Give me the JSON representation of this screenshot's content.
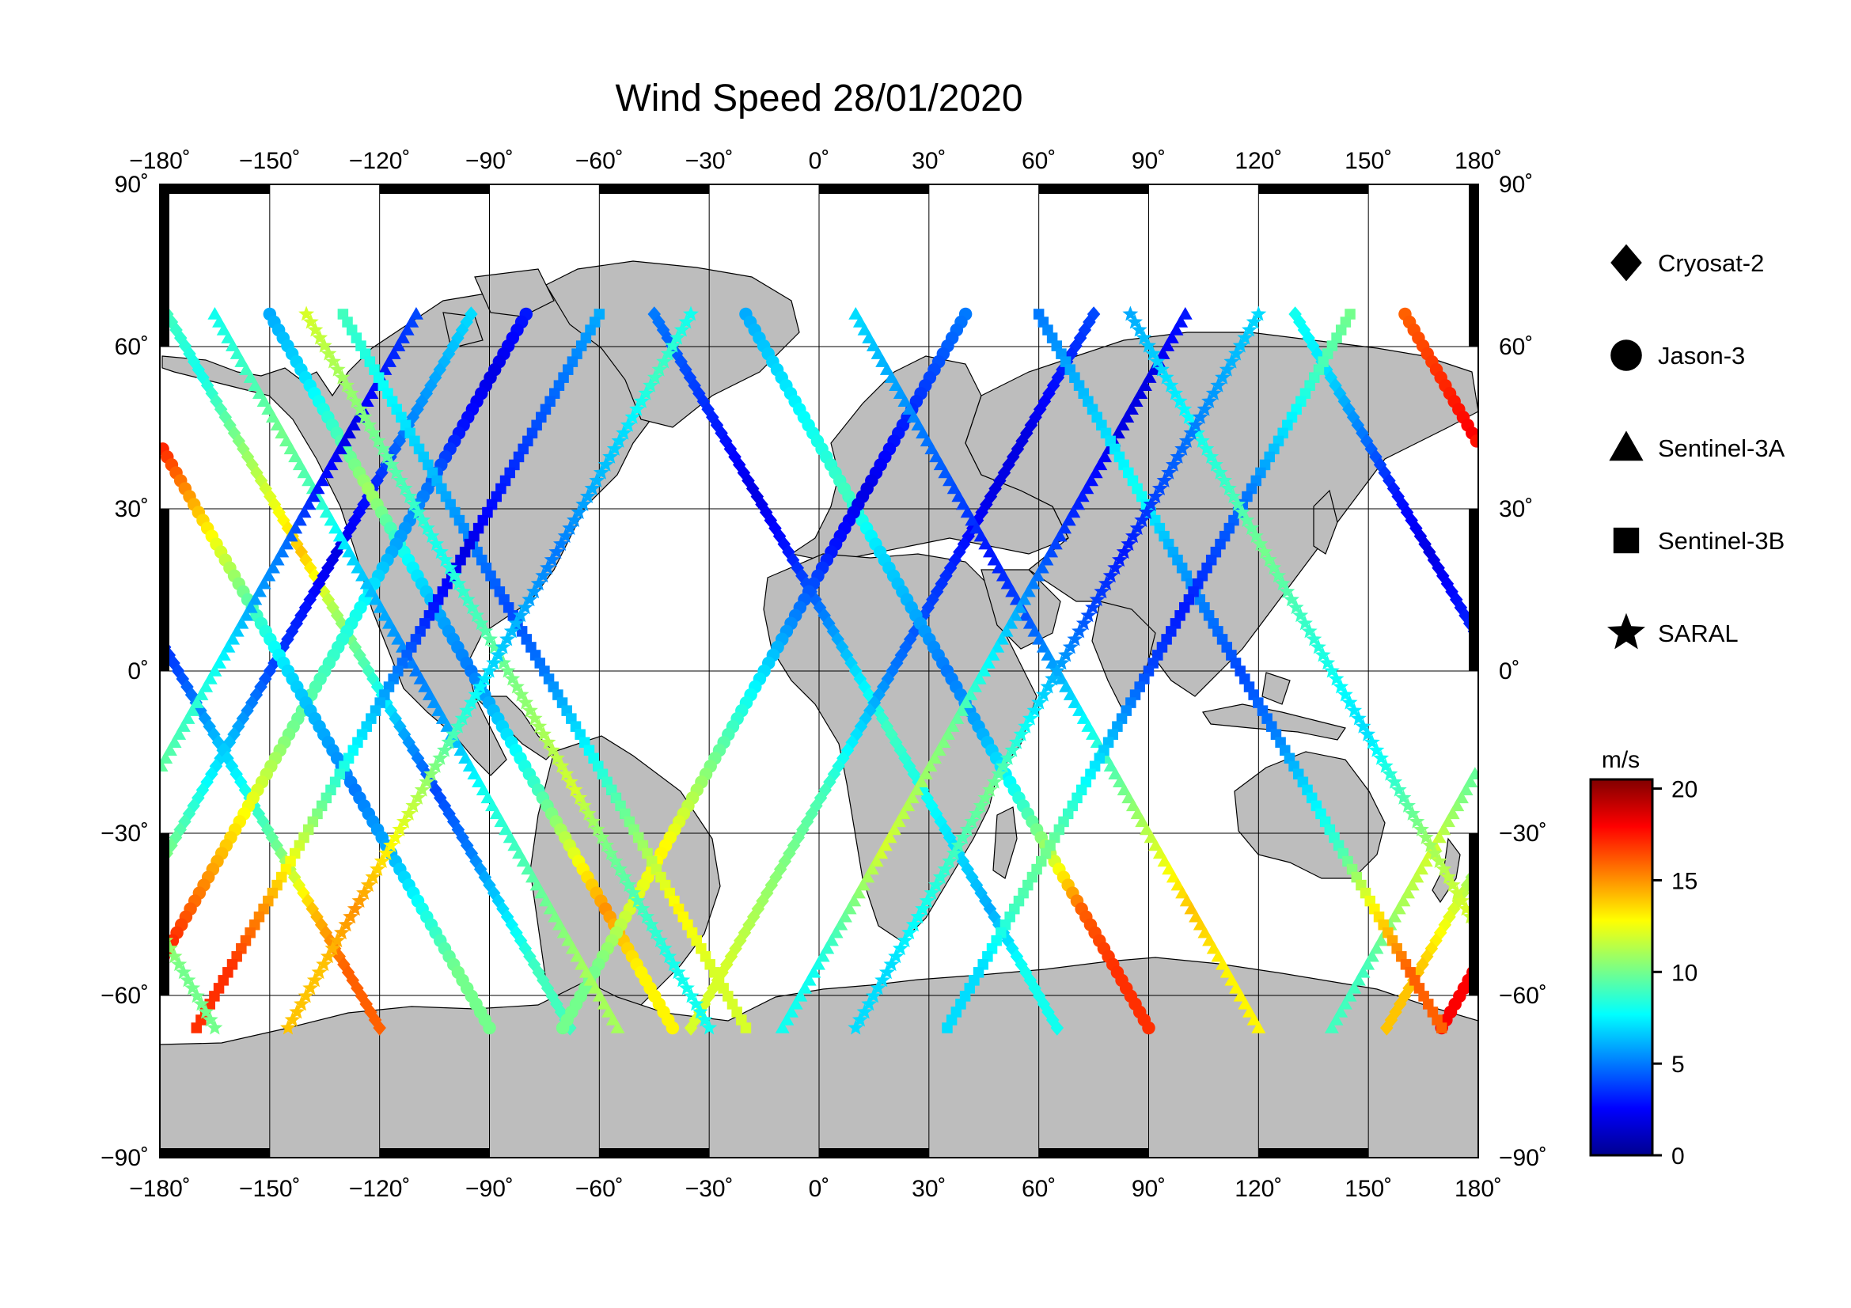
{
  "title": "Wind Speed 28/01/2020",
  "longitude_ticks": [
    "−180˚",
    "−150˚",
    "−120˚",
    "−90˚",
    "−60˚",
    "−30˚",
    "0˚",
    "30˚",
    "60˚",
    "90˚",
    "120˚",
    "150˚",
    "180˚"
  ],
  "latitude_ticks_left": [
    "90˚",
    "60˚",
    "30˚",
    "0˚",
    "−30˚",
    "−60˚",
    "−90˚"
  ],
  "latitude_ticks_right": [
    "90˚",
    "60˚",
    "30˚",
    "0˚",
    "−30˚",
    "−60˚",
    "−90˚"
  ],
  "legend": [
    {
      "label": "Cryosat-2",
      "symbol": "diamond"
    },
    {
      "label": "Jason-3",
      "symbol": "circle"
    },
    {
      "label": "Sentinel-3A",
      "symbol": "triangle"
    },
    {
      "label": "Sentinel-3B",
      "symbol": "square"
    },
    {
      "label": "SARAL",
      "symbol": "star"
    }
  ],
  "colorbar": {
    "unit": "m/s",
    "min": 0,
    "max": 20.5,
    "tick_labels": [
      "20",
      "15",
      "10",
      "5",
      "0"
    ],
    "tick_values": [
      20,
      15,
      10,
      5,
      0
    ],
    "colormap": "jet"
  },
  "colors": {
    "land": "#bdbdbd",
    "ocean": "#ffffff",
    "frame": "#000000"
  },
  "chart_data": {
    "type": "scatter",
    "title": "Wind Speed 28/01/2020",
    "projection": "equirectangular",
    "xlim": [
      -180,
      180
    ],
    "ylim": [
      -90,
      90
    ],
    "grid": true,
    "grid_step_deg": 30,
    "color_variable": "wind speed (m/s)",
    "series": [
      {
        "name": "Cryosat-2",
        "marker": "diamond",
        "tracks": [
          {
            "lon0": -178,
            "speed": [
              9,
              8,
              10,
              12,
              14,
              11,
              9,
              6,
              4,
              5,
              7,
              9
            ]
          },
          {
            "lon0": -95,
            "speed": [
              7,
              6,
              5,
              3,
              2,
              3,
              4,
              6,
              8,
              10,
              12,
              14
            ]
          },
          {
            "lon0": -45,
            "speed": [
              5,
              4,
              3,
              2,
              3,
              5,
              7,
              9,
              8,
              7,
              6,
              8
            ]
          },
          {
            "lon0": 75,
            "speed": [
              4,
              3,
              2,
              2,
              3,
              4,
              5,
              7,
              9,
              10,
              11,
              12
            ]
          },
          {
            "lon0": 130,
            "speed": [
              8,
              7,
              5,
              3,
              2,
              3,
              4,
              6,
              8,
              10,
              14,
              16
            ]
          }
        ]
      },
      {
        "name": "Jason-3",
        "marker": "circle",
        "tracks": [
          {
            "lon0": -150,
            "speed": [
              6,
              7,
              9,
              11,
              8,
              6,
              5,
              7,
              9,
              12,
              15,
              13
            ]
          },
          {
            "lon0": -80,
            "speed": [
              3,
              2,
              3,
              5,
              6,
              8,
              9,
              10,
              12,
              14,
              16,
              18
            ]
          },
          {
            "lon0": -20,
            "speed": [
              6,
              7,
              8,
              9,
              7,
              6,
              5,
              6,
              8,
              11,
              16,
              17
            ]
          },
          {
            "lon0": 40,
            "speed": [
              5,
              4,
              3,
              2,
              3,
              5,
              7,
              9,
              11,
              13,
              12,
              10
            ]
          },
          {
            "lon0": 160,
            "speed": [
              16,
              17,
              18,
              15,
              12,
              9,
              7,
              6,
              5,
              6,
              8,
              10
            ]
          }
        ]
      },
      {
        "name": "Sentinel-3A",
        "marker": "triangle",
        "tracks": [
          {
            "lon0": -165,
            "speed": [
              8,
              9,
              10,
              9,
              7,
              6,
              5,
              6,
              8,
              9,
              10,
              11
            ]
          },
          {
            "lon0": -110,
            "speed": [
              4,
              3,
              2,
              3,
              5,
              6,
              8,
              9,
              10,
              12,
              11,
              9
            ]
          },
          {
            "lon0": 10,
            "speed": [
              7,
              6,
              5,
              4,
              3,
              4,
              6,
              8,
              10,
              12,
              14,
              13
            ]
          },
          {
            "lon0": 100,
            "speed": [
              3,
              2,
              2,
              3,
              4,
              6,
              8,
              10,
              11,
              12,
              10,
              8
            ]
          }
        ]
      },
      {
        "name": "Sentinel-3B",
        "marker": "square",
        "tracks": [
          {
            "lon0": -130,
            "speed": [
              9,
              8,
              7,
              6,
              5,
              4,
              5,
              7,
              9,
              11,
              13,
              12
            ]
          },
          {
            "lon0": -60,
            "speed": [
              6,
              5,
              4,
              3,
              2,
              3,
              5,
              7,
              9,
              12,
              15,
              17
            ]
          },
          {
            "lon0": 60,
            "speed": [
              5,
              6,
              7,
              8,
              6,
              5,
              4,
              5,
              7,
              9,
              13,
              16
            ]
          },
          {
            "lon0": 145,
            "speed": [
              10,
              9,
              7,
              5,
              4,
              3,
              4,
              6,
              8,
              10,
              9,
              7
            ]
          }
        ]
      },
      {
        "name": "SARAL",
        "marker": "star",
        "tracks": [
          {
            "lon0": -140,
            "speed": [
              12,
              11,
              10,
              9,
              8,
              9,
              10,
              11,
              12,
              10,
              9,
              8
            ]
          },
          {
            "lon0": -35,
            "speed": [
              8,
              9,
              7,
              6,
              5,
              6,
              7,
              9,
              11,
              13,
              15,
              14
            ]
          },
          {
            "lon0": 85,
            "speed": [
              6,
              7,
              8,
              9,
              10,
              9,
              8,
              7,
              9,
              11,
              12,
              10
            ]
          },
          {
            "lon0": 120,
            "speed": [
              7,
              6,
              5,
              4,
              3,
              4,
              6,
              8,
              10,
              9,
              8,
              7
            ]
          }
        ]
      }
    ]
  }
}
